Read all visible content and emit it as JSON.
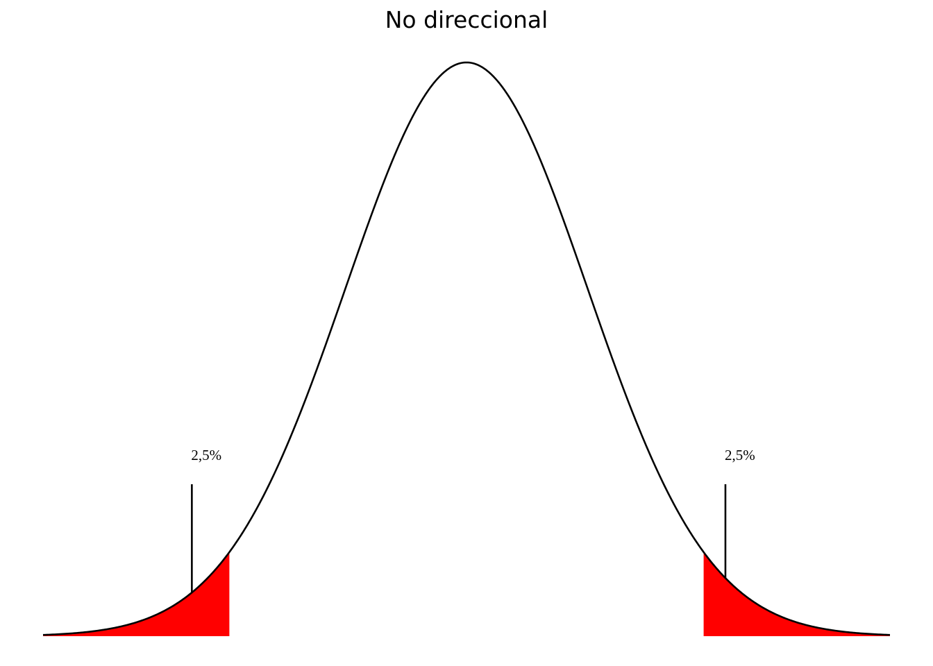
{
  "chart_data": {
    "type": "area",
    "title": "No direccional",
    "xlabel": "",
    "ylabel": "",
    "distribution": "normal",
    "mean": 0,
    "sd": 1,
    "xlim": [
      -3.5,
      3.5
    ],
    "grid": false,
    "axes_visible": false,
    "series": [
      {
        "kind": "density-curve",
        "color": "#000000"
      }
    ],
    "shaded_regions": [
      {
        "name": "left-tail",
        "from": -3.5,
        "to": -1.96,
        "color": "#ff0000"
      },
      {
        "name": "right-tail",
        "from": 1.96,
        "to": 3.5,
        "color": "#ff0000"
      }
    ],
    "annotations": [
      {
        "name": "left-tail-label",
        "text": "2,5%",
        "x": -2.27
      },
      {
        "name": "right-tail-label",
        "text": "2,5%",
        "x": 2.14
      }
    ]
  }
}
